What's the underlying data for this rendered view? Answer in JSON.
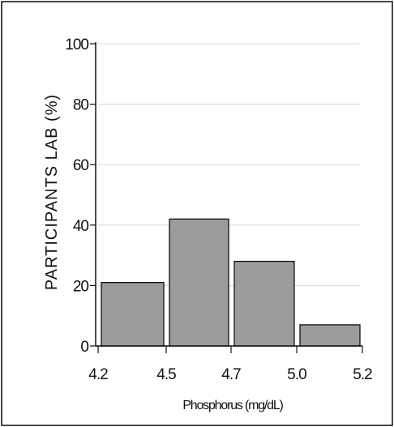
{
  "chart_data": {
    "type": "bar",
    "title": "",
    "xlabel": "Phosphorus (mg/dL)",
    "ylabel": "PARTICIPANTS LAB (%)",
    "bins": [
      {
        "start": 4.2,
        "end": 4.5,
        "value": 21
      },
      {
        "start": 4.5,
        "end": 4.7,
        "value": 42
      },
      {
        "start": 4.7,
        "end": 5.0,
        "value": 28
      },
      {
        "start": 5.0,
        "end": 5.2,
        "value": 7
      }
    ],
    "x_ticks": [
      "4.2",
      "4.5",
      "4.7",
      "5.0",
      "5.2"
    ],
    "y_ticks": [
      "0",
      "20",
      "40",
      "60",
      "80",
      "100"
    ],
    "ylim": [
      0,
      100
    ],
    "grid": true,
    "legend": "none",
    "colors": {
      "bar_fill": "#9b9b9b",
      "bar_stroke": "#111111",
      "grid": "#d6d6d6"
    }
  }
}
